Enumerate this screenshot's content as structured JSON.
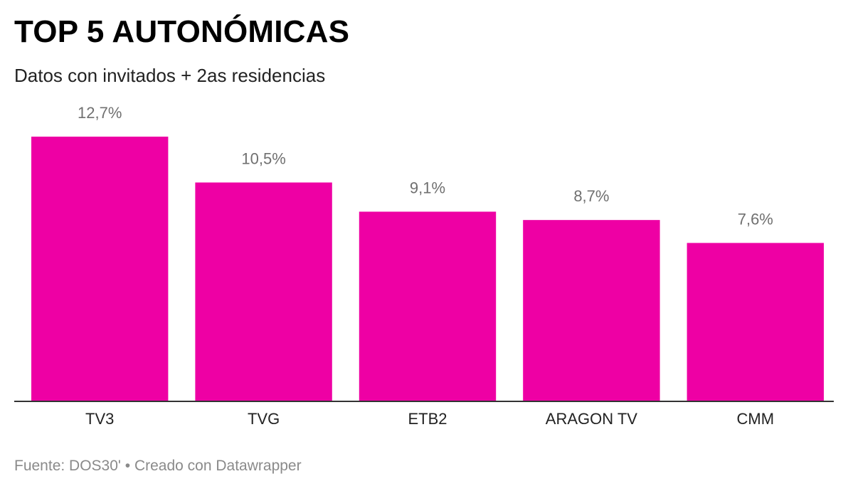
{
  "header": {
    "title": "TOP 5 AUTONÓMICAS",
    "subtitle": "Datos con invitados + 2as residencias"
  },
  "chart_data": {
    "type": "bar",
    "title": "TOP 5 AUTONÓMICAS",
    "subtitle": "Datos con invitados + 2as residencias",
    "categories": [
      "TV3",
      "TVG",
      "ETB2",
      "ARAGON TV",
      "CMM"
    ],
    "values": [
      12.7,
      10.5,
      9.1,
      8.7,
      7.6
    ],
    "value_labels": [
      "12,7%",
      "10,5%",
      "9,1%",
      "8,7%",
      "7,6%"
    ],
    "xlabel": "",
    "ylabel": "",
    "ylim": [
      0,
      12.7
    ],
    "grid": false,
    "legend": "none",
    "bar_color": "#ee00a4"
  },
  "footer": {
    "source": "Fuente: DOS30'",
    "separator": " • ",
    "credit": "Creado con Datawrapper"
  }
}
